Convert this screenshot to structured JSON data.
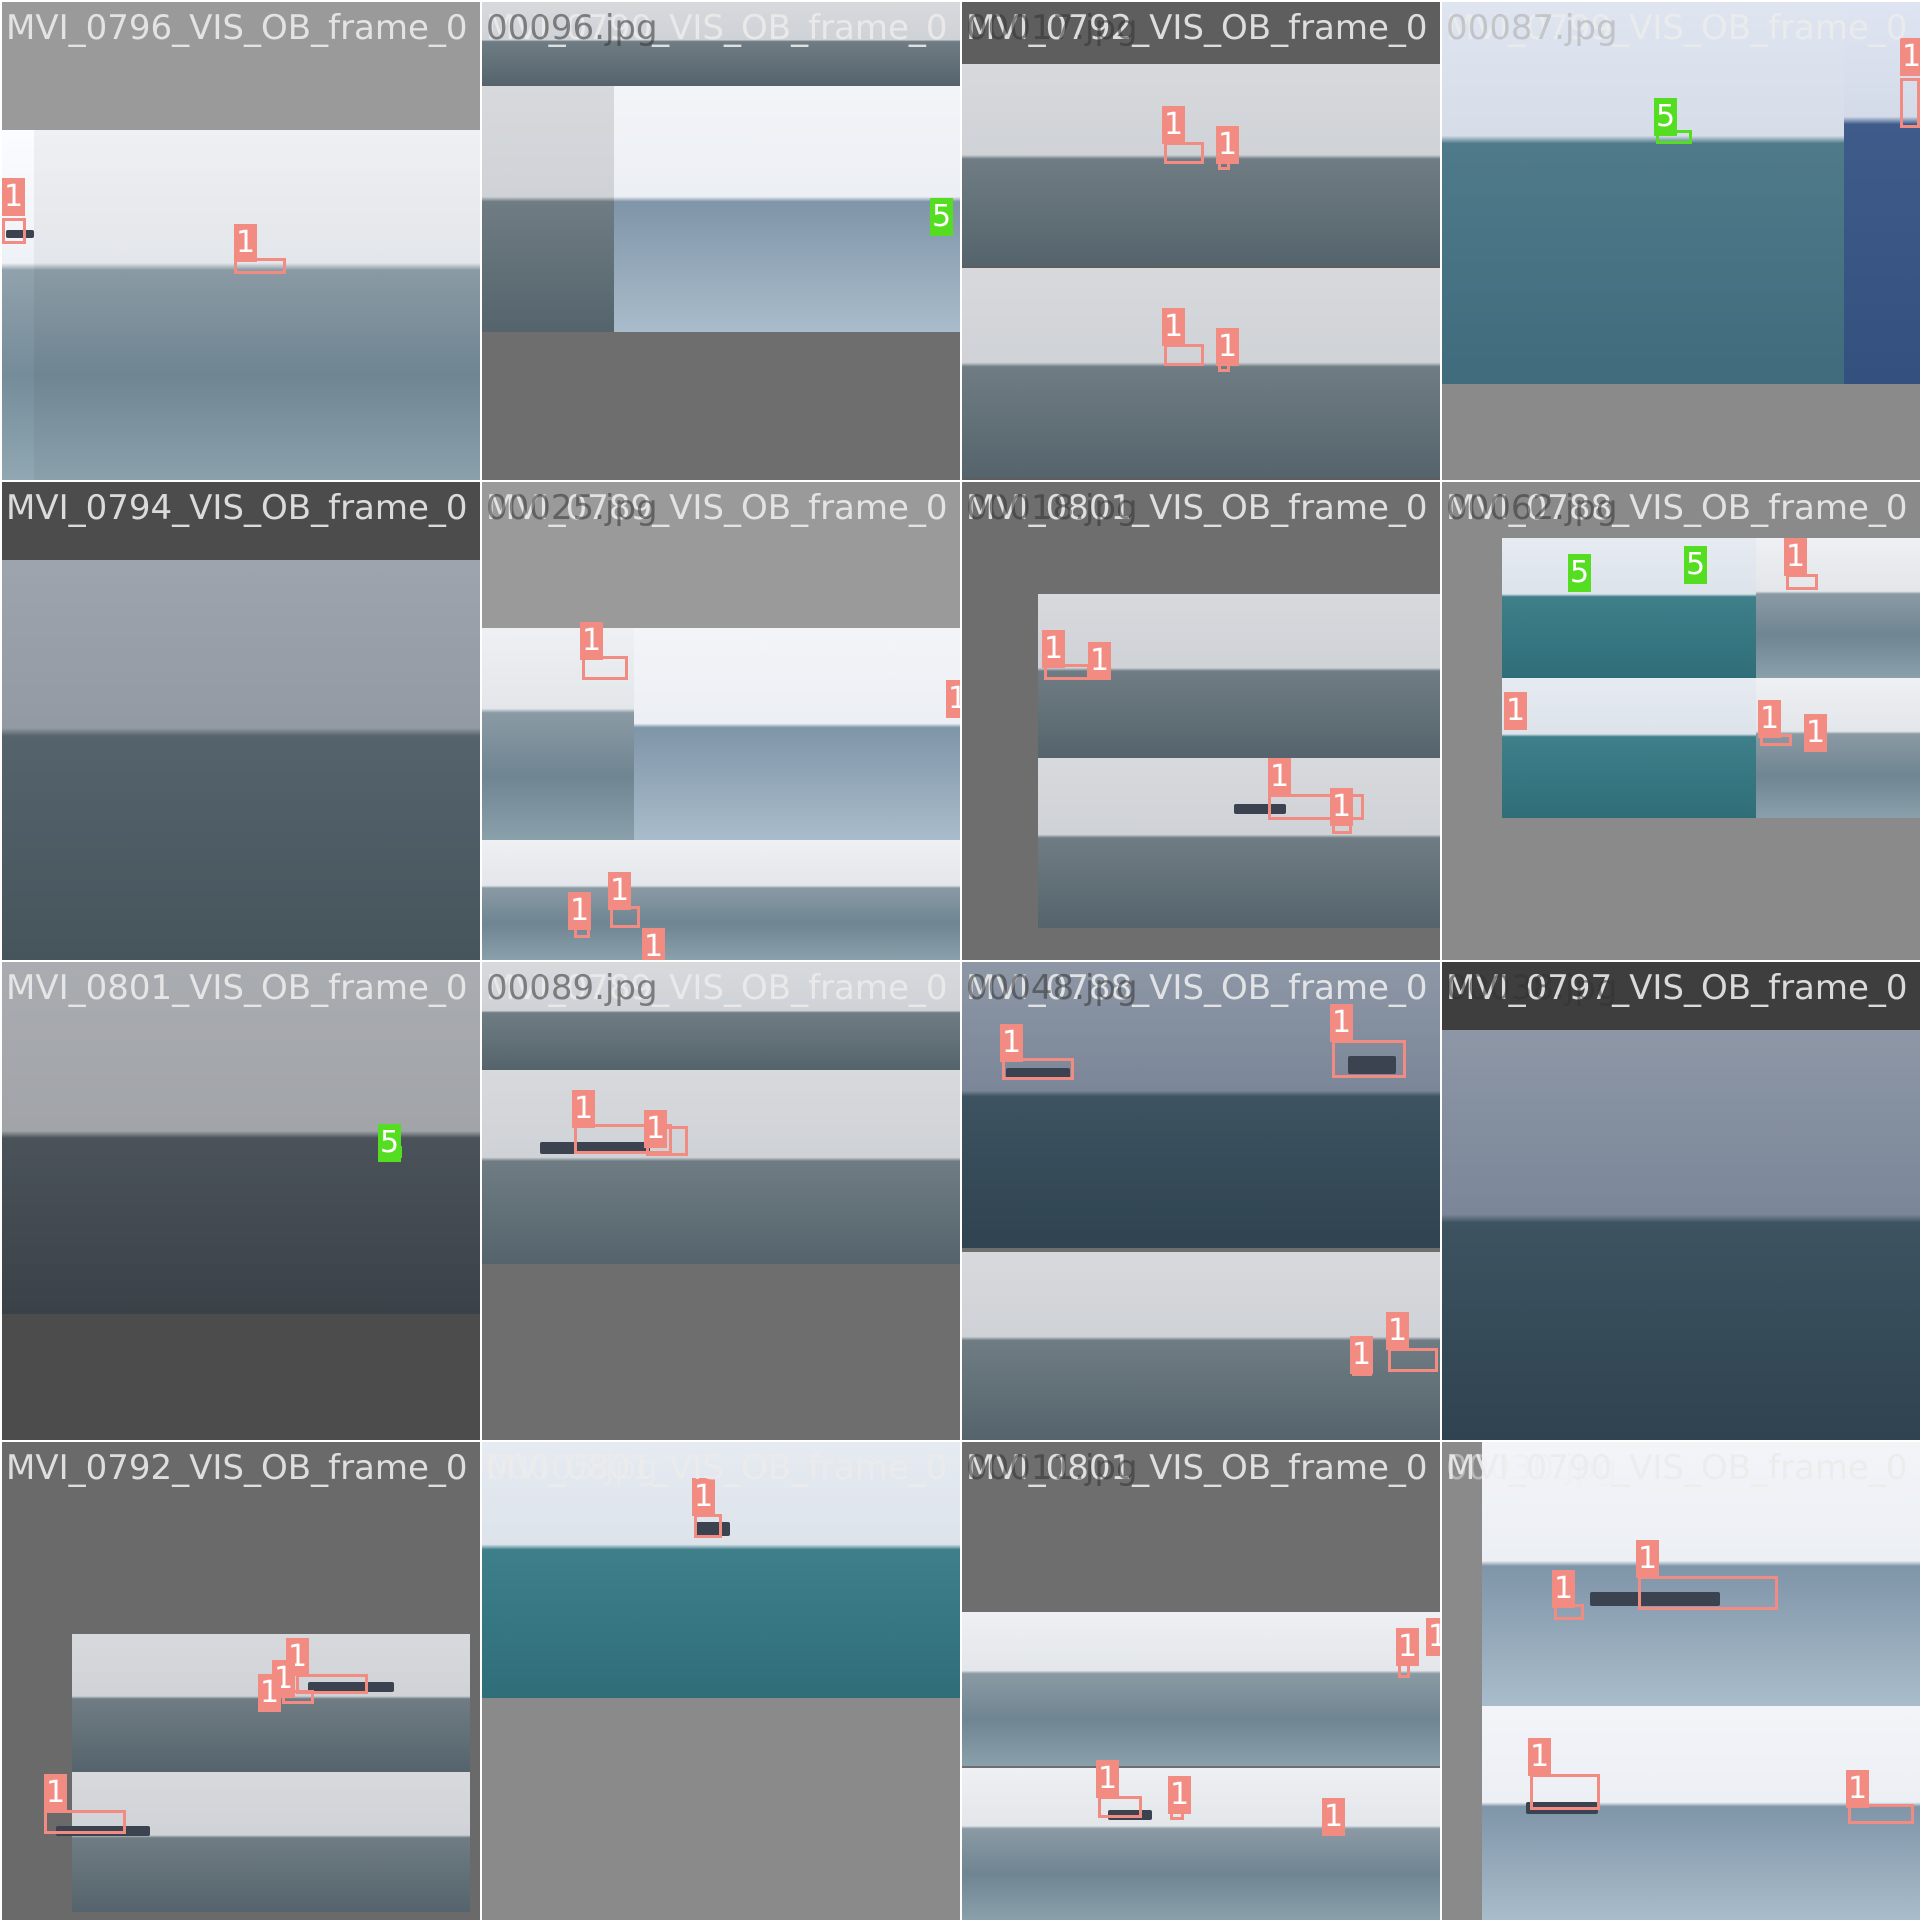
{
  "colors": {
    "ship_box": "#f28b82",
    "ship_tag": "#f28b82",
    "boat_box": "#55dd22",
    "boat_tag": "#55dd22",
    "label_text": "#ebebeb"
  },
  "class_labels": {
    "ship": "1",
    "boat": "5"
  },
  "tiles": [
    {
      "label": "MVI_0796_VIS_OB_frame_0"
    },
    {
      "label": "MVI_0790_VIS_OB_frame_0"
    },
    {
      "label": "MVI_0792_VIS_OB_frame_0"
    },
    {
      "label": "MVI_0799_VIS_OB_frame_0"
    },
    {
      "label": "MVI_0794_VIS_OB_frame_0"
    },
    {
      "label": "MVI_0789_VIS_OB_frame_0"
    },
    {
      "label": "MVI_0801_VIS_OB_frame_0"
    },
    {
      "label": "MVI_0788_VIS_OB_frame_0"
    },
    {
      "label": "MVI_0801_VIS_OB_frame_0"
    },
    {
      "label": "MVI_0789_VIS_OB_frame_0"
    },
    {
      "label": "MVI_0788_VIS_OB_frame_0"
    },
    {
      "label": "MVI_0797_VIS_OB_frame_0"
    },
    {
      "label": "MVI_0792_VIS_OB_frame_0"
    },
    {
      "label": "MVI_0801_VIS_OB_frame_0"
    },
    {
      "label": "MVI_0801_VIS_OB_frame_0"
    },
    {
      "label": "MVI_0790_VIS_OB_frame_0"
    }
  ],
  "overlap_labels": [
    "00096.jpg",
    "00017.jpg",
    "00087.jpg",
    "00025.jpg",
    "00018.jpg",
    "00062.jpg",
    "00089.jpg",
    "00048.jpg",
    "00038.jpg",
    "00005.jpg",
    "00011.jpg",
    "00030.jpg"
  ]
}
